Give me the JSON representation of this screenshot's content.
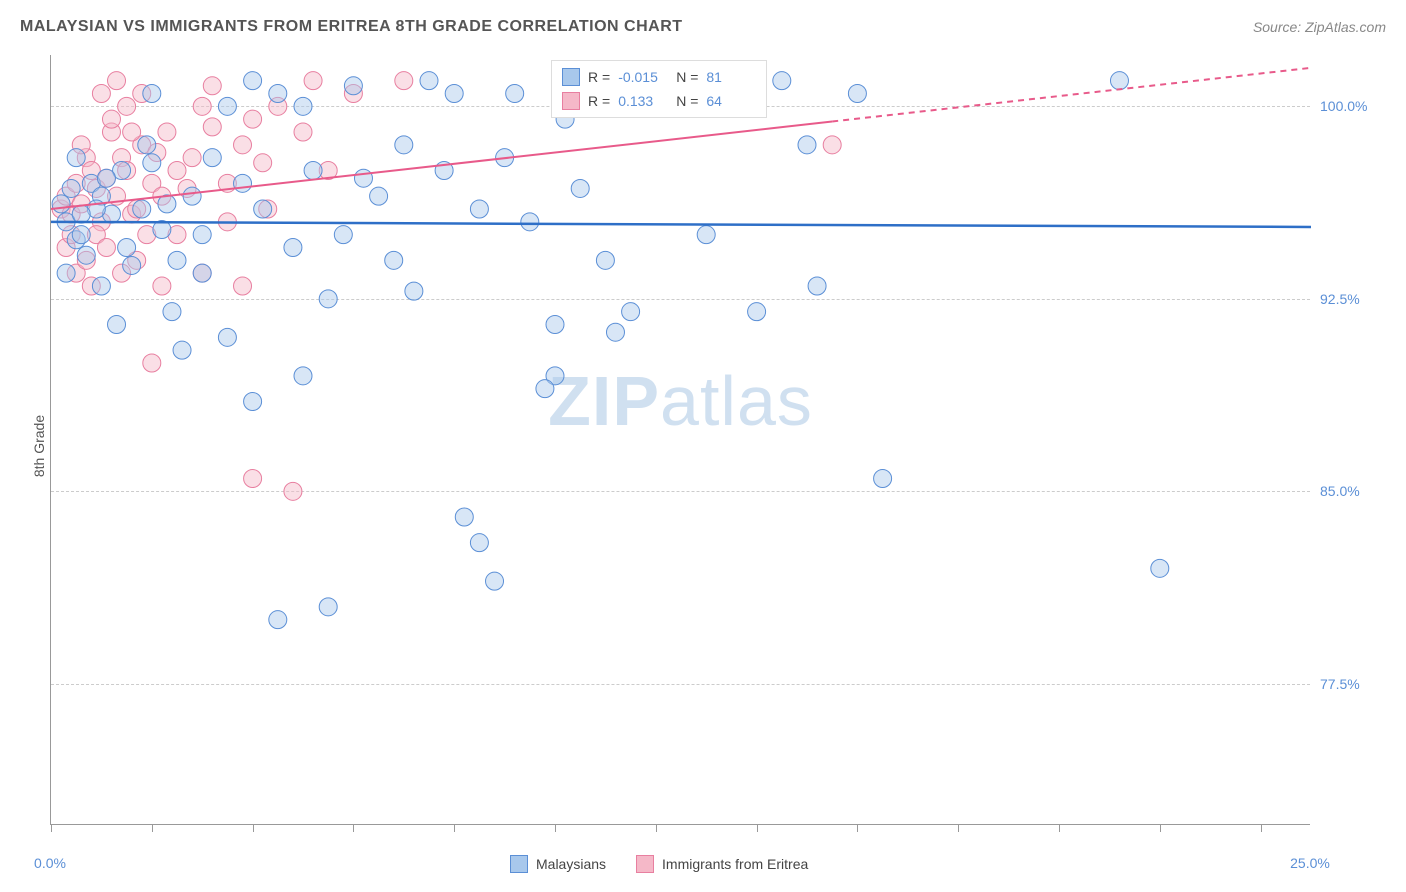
{
  "title": "MALAYSIAN VS IMMIGRANTS FROM ERITREA 8TH GRADE CORRELATION CHART",
  "source": "Source: ZipAtlas.com",
  "y_axis_label": "8th Grade",
  "watermark_a": "ZIP",
  "watermark_b": "atlas",
  "chart": {
    "type": "scatter",
    "xlim": [
      0,
      25
    ],
    "ylim": [
      72,
      102
    ],
    "x_ticks": [
      0,
      2,
      4,
      6,
      8,
      10,
      12,
      14,
      16,
      18,
      20,
      22,
      24
    ],
    "x_tick_labels": {
      "0": "0.0%",
      "25": "25.0%"
    },
    "y_grid": [
      77.5,
      85.0,
      92.5,
      100.0
    ],
    "y_tick_labels": [
      "77.5%",
      "85.0%",
      "92.5%",
      "100.0%"
    ],
    "background_color": "#ffffff",
    "grid_color": "#cccccc",
    "axis_color": "#999999",
    "marker_radius": 9,
    "marker_opacity": 0.45,
    "series": [
      {
        "name": "Malaysians",
        "color_fill": "#a8c8ec",
        "color_stroke": "#5b8fd6",
        "r_value": "-0.015",
        "n_value": "81",
        "trend": {
          "y_at_x0": 95.5,
          "y_at_x25": 95.3,
          "color": "#2e6fc7",
          "width": 2.5,
          "dash_after_x": null
        },
        "points": [
          [
            0.2,
            96.2
          ],
          [
            0.3,
            95.5
          ],
          [
            0.5,
            94.8
          ],
          [
            0.4,
            96.8
          ],
          [
            0.6,
            95.0
          ],
          [
            0.8,
            97.0
          ],
          [
            0.3,
            93.5
          ],
          [
            1.0,
            96.5
          ],
          [
            0.7,
            94.2
          ],
          [
            0.5,
            98.0
          ],
          [
            1.2,
            95.8
          ],
          [
            1.4,
            97.5
          ],
          [
            1.0,
            93.0
          ],
          [
            1.5,
            94.5
          ],
          [
            1.8,
            96.0
          ],
          [
            1.3,
            91.5
          ],
          [
            2.0,
            97.8
          ],
          [
            1.6,
            93.8
          ],
          [
            2.2,
            95.2
          ],
          [
            1.9,
            98.5
          ],
          [
            2.5,
            94.0
          ],
          [
            2.0,
            100.5
          ],
          [
            2.8,
            96.5
          ],
          [
            2.4,
            92.0
          ],
          [
            3.0,
            95.0
          ],
          [
            3.2,
            98.0
          ],
          [
            2.6,
            90.5
          ],
          [
            3.5,
            100.0
          ],
          [
            3.0,
            93.5
          ],
          [
            3.8,
            97.0
          ],
          [
            4.0,
            101.0
          ],
          [
            3.5,
            91.0
          ],
          [
            4.2,
            96.0
          ],
          [
            4.5,
            100.5
          ],
          [
            4.0,
            88.5
          ],
          [
            4.8,
            94.5
          ],
          [
            5.0,
            100.0
          ],
          [
            4.5,
            80.0
          ],
          [
            5.2,
            97.5
          ],
          [
            5.5,
            92.5
          ],
          [
            5.0,
            89.5
          ],
          [
            6.0,
            100.8
          ],
          [
            5.8,
            95.0
          ],
          [
            6.2,
            97.2
          ],
          [
            5.5,
            80.5
          ],
          [
            6.5,
            96.5
          ],
          [
            7.0,
            98.5
          ],
          [
            6.8,
            94.0
          ],
          [
            7.5,
            101.0
          ],
          [
            7.2,
            92.8
          ],
          [
            7.8,
            97.5
          ],
          [
            8.0,
            100.5
          ],
          [
            8.2,
            84.0
          ],
          [
            8.5,
            96.0
          ],
          [
            9.0,
            98.0
          ],
          [
            8.5,
            83.0
          ],
          [
            9.2,
            100.5
          ],
          [
            8.8,
            81.5
          ],
          [
            9.5,
            95.5
          ],
          [
            10.0,
            89.5
          ],
          [
            9.8,
            89.0
          ],
          [
            10.2,
            99.5
          ],
          [
            10.5,
            96.8
          ],
          [
            10.0,
            91.5
          ],
          [
            11.0,
            94.0
          ],
          [
            11.5,
            92.0
          ],
          [
            11.2,
            91.2
          ],
          [
            13.0,
            95.0
          ],
          [
            12.5,
            100.8
          ],
          [
            14.0,
            92.0
          ],
          [
            14.5,
            101.0
          ],
          [
            15.0,
            98.5
          ],
          [
            15.2,
            93.0
          ],
          [
            16.0,
            100.5
          ],
          [
            16.5,
            85.5
          ],
          [
            21.2,
            101.0
          ],
          [
            22.0,
            82.0
          ],
          [
            0.9,
            96.0
          ],
          [
            1.1,
            97.2
          ],
          [
            0.6,
            95.8
          ],
          [
            2.3,
            96.2
          ]
        ]
      },
      {
        "name": "Immigrants from Eritrea",
        "color_fill": "#f5b8c8",
        "color_stroke": "#e87fa0",
        "r_value": "0.133",
        "n_value": "64",
        "trend": {
          "y_at_x0": 96.0,
          "y_at_x25": 101.5,
          "color": "#e85a8a",
          "width": 2,
          "dash_after_x": 15.5
        },
        "points": [
          [
            0.2,
            96.0
          ],
          [
            0.3,
            96.5
          ],
          [
            0.4,
            95.8
          ],
          [
            0.5,
            97.0
          ],
          [
            0.3,
            94.5
          ],
          [
            0.6,
            96.2
          ],
          [
            0.7,
            98.0
          ],
          [
            0.4,
            95.0
          ],
          [
            0.8,
            97.5
          ],
          [
            0.5,
            93.5
          ],
          [
            0.9,
            96.8
          ],
          [
            0.6,
            98.5
          ],
          [
            1.0,
            95.5
          ],
          [
            0.7,
            94.0
          ],
          [
            1.1,
            97.2
          ],
          [
            0.8,
            93.0
          ],
          [
            1.2,
            99.0
          ],
          [
            0.9,
            95.0
          ],
          [
            1.3,
            96.5
          ],
          [
            1.0,
            100.5
          ],
          [
            1.4,
            98.0
          ],
          [
            1.1,
            94.5
          ],
          [
            1.5,
            97.5
          ],
          [
            1.2,
            99.5
          ],
          [
            1.6,
            95.8
          ],
          [
            1.3,
            101.0
          ],
          [
            1.7,
            96.0
          ],
          [
            1.4,
            93.5
          ],
          [
            1.8,
            98.5
          ],
          [
            1.5,
            100.0
          ],
          [
            1.9,
            95.0
          ],
          [
            1.6,
            99.0
          ],
          [
            2.0,
            97.0
          ],
          [
            1.7,
            94.0
          ],
          [
            2.1,
            98.2
          ],
          [
            1.8,
            100.5
          ],
          [
            2.2,
            96.5
          ],
          [
            2.0,
            90.0
          ],
          [
            2.3,
            99.0
          ],
          [
            2.5,
            97.5
          ],
          [
            2.2,
            93.0
          ],
          [
            2.8,
            98.0
          ],
          [
            2.5,
            95.0
          ],
          [
            3.0,
            100.0
          ],
          [
            2.7,
            96.8
          ],
          [
            3.2,
            99.2
          ],
          [
            3.0,
            93.5
          ],
          [
            3.5,
            97.0
          ],
          [
            3.2,
            100.8
          ],
          [
            3.8,
            98.5
          ],
          [
            3.5,
            95.5
          ],
          [
            4.0,
            99.5
          ],
          [
            3.8,
            93.0
          ],
          [
            4.2,
            97.8
          ],
          [
            4.0,
            85.5
          ],
          [
            4.5,
            100.0
          ],
          [
            4.3,
            96.0
          ],
          [
            5.0,
            99.0
          ],
          [
            4.8,
            85.0
          ],
          [
            5.2,
            101.0
          ],
          [
            5.5,
            97.5
          ],
          [
            6.0,
            100.5
          ],
          [
            7.0,
            101.0
          ],
          [
            15.5,
            98.5
          ]
        ]
      }
    ]
  },
  "legend_top": {
    "r_label": "R =",
    "n_label": "N ="
  },
  "legend_bottom": {
    "series1_label": "Malaysians",
    "series2_label": "Immigrants from Eritrea"
  }
}
